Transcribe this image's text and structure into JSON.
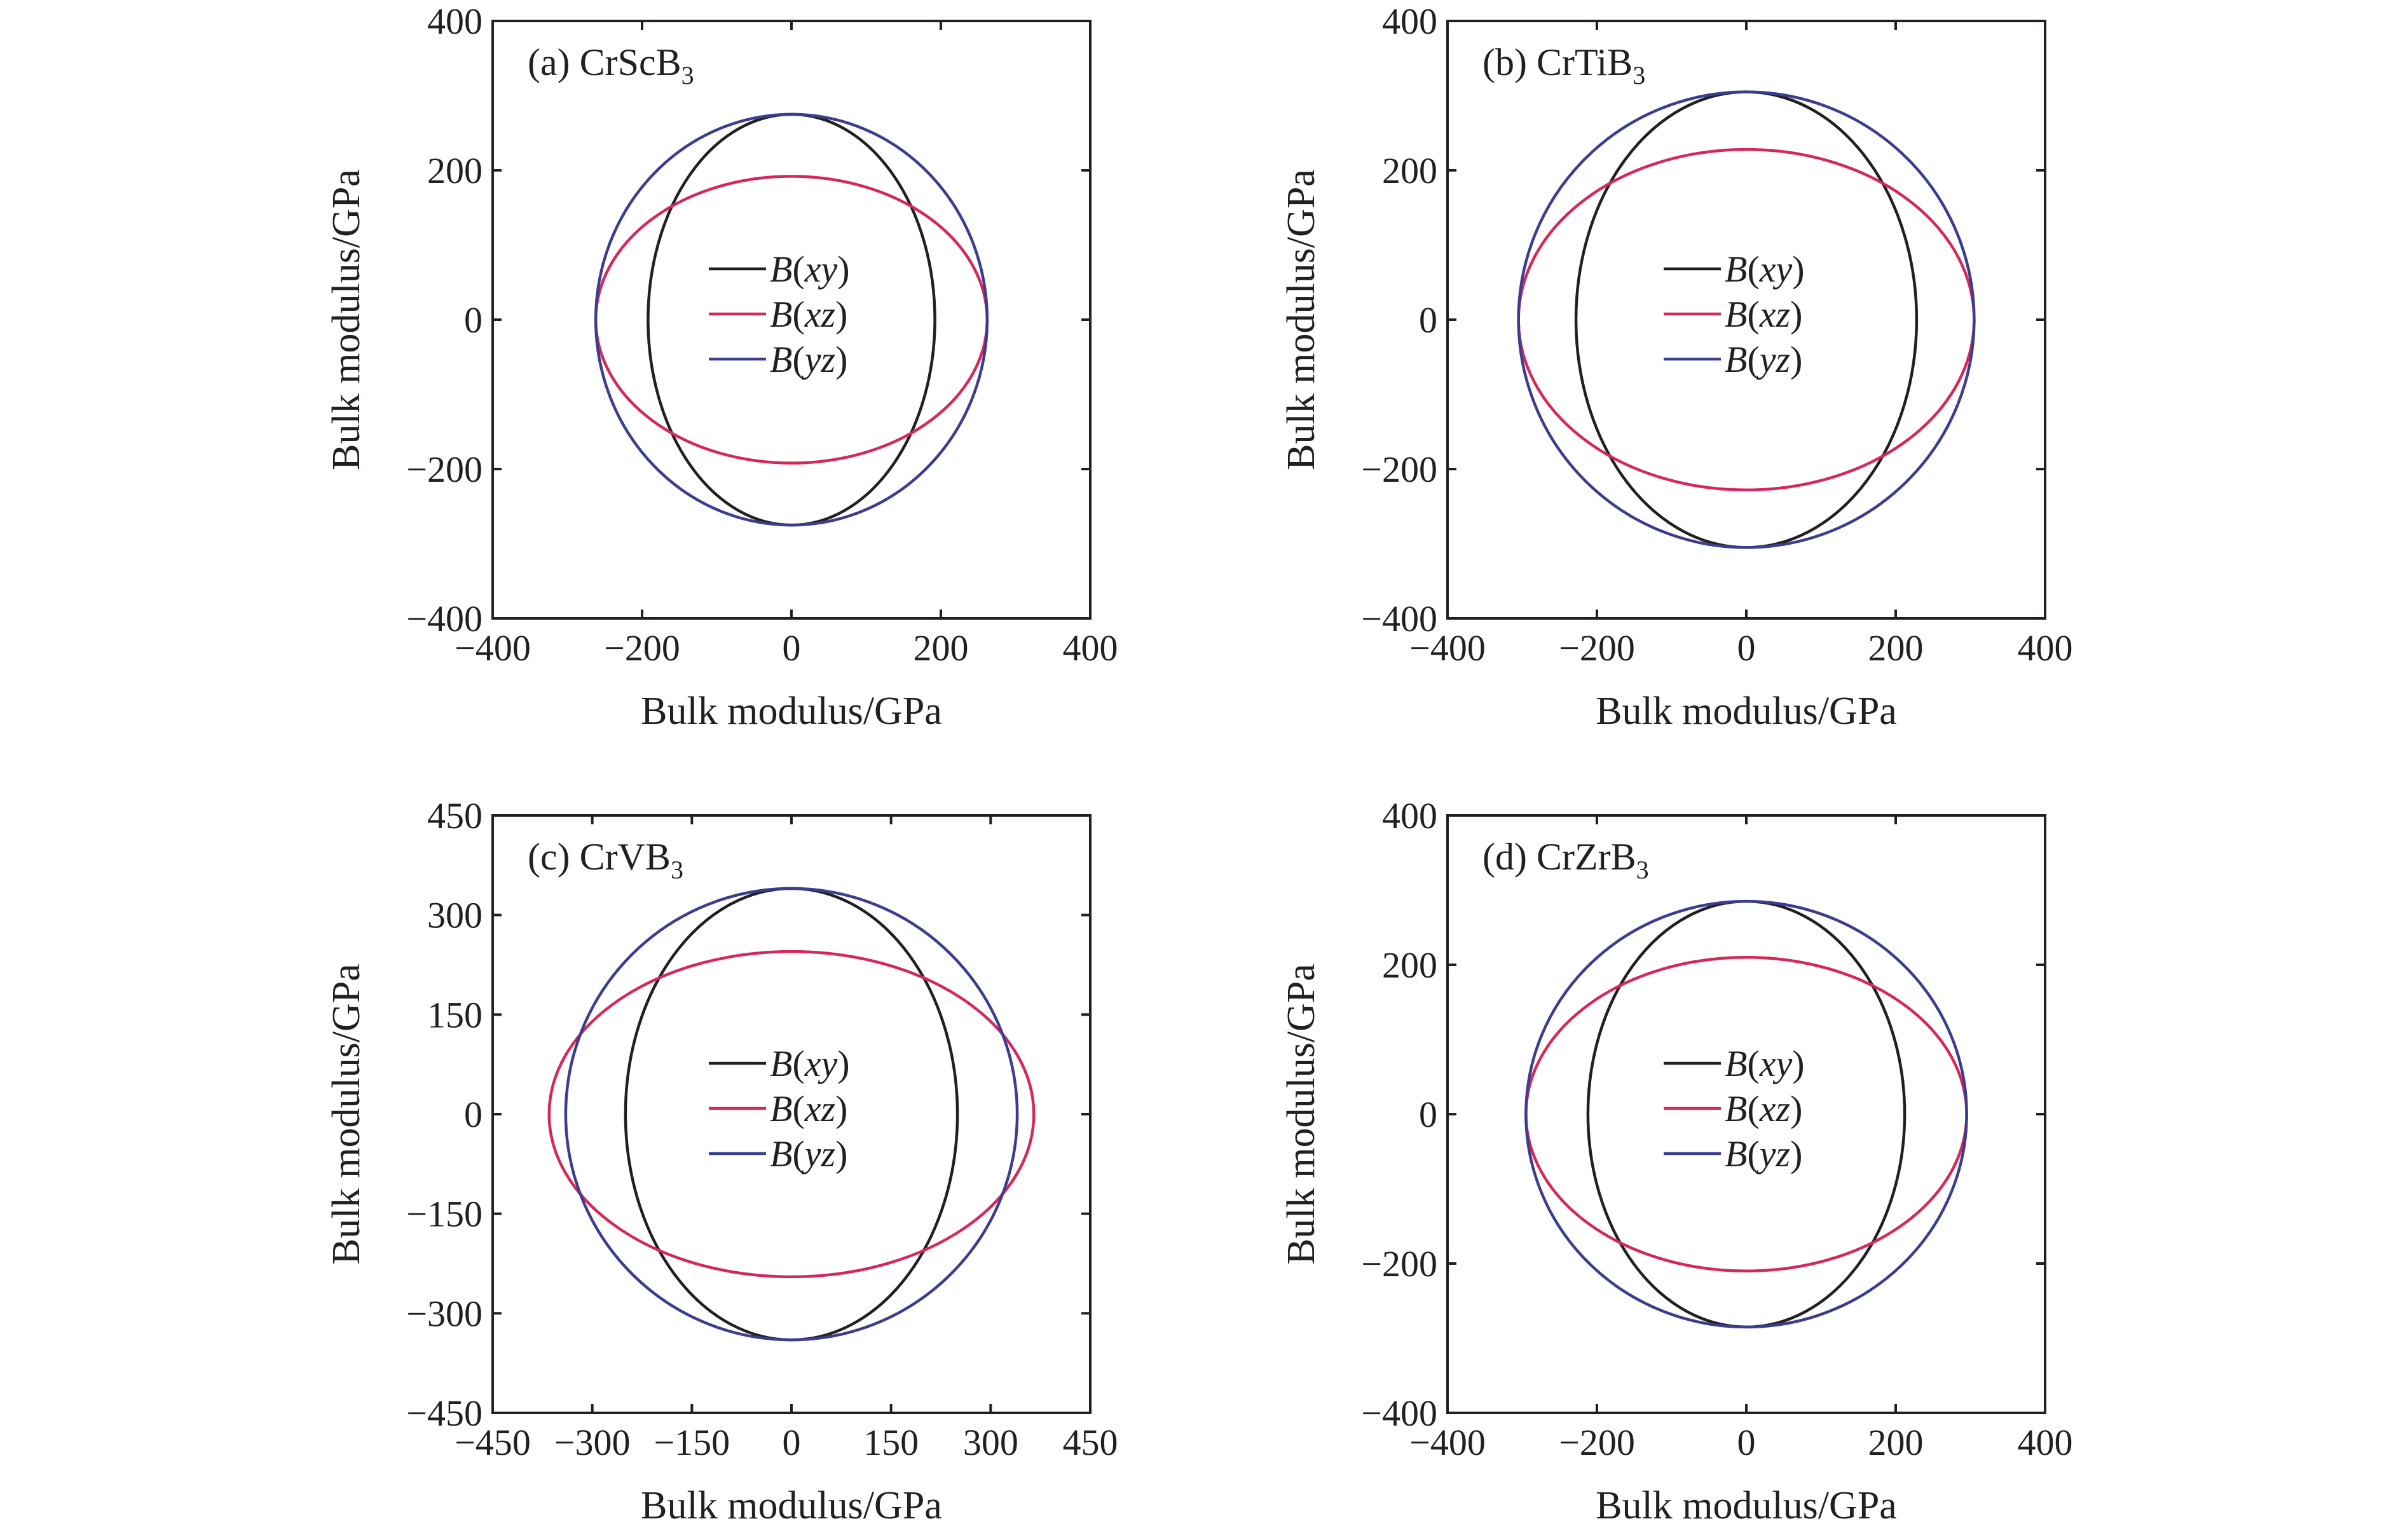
{
  "chart_data": [
    {
      "type": "polar-line",
      "panel": "(a)",
      "title": "CrScB",
      "title_subscript": "3",
      "xlabel": "Bulk modulus/GPa",
      "ylabel": "Bulk modulus/GPa",
      "xlim": [
        -400,
        400
      ],
      "ylim": [
        -400,
        400
      ],
      "xticks": [
        -400,
        -200,
        0,
        200,
        400
      ],
      "yticks": [
        -400,
        -200,
        0,
        200,
        400
      ],
      "xtick_labels": [
        "−400",
        "−200",
        "0",
        "200",
        "400"
      ],
      "ytick_labels": [
        "−400",
        "−200",
        "0",
        "200",
        "400"
      ],
      "grid": false,
      "legend_position": "center",
      "series": [
        {
          "name": "B(xy)",
          "name_main": "B",
          "name_args": "xy",
          "color": "#231f20",
          "a": 192,
          "b": 275
        },
        {
          "name": "B(xz)",
          "name_main": "B",
          "name_args": "xz",
          "color": "#d6275a",
          "a": 262,
          "b": 192
        },
        {
          "name": "B(yz)",
          "name_main": "B",
          "name_args": "yz",
          "color": "#3b3d8f",
          "a": 262,
          "b": 275
        }
      ]
    },
    {
      "type": "polar-line",
      "panel": "(b)",
      "title": "CrTiB",
      "title_subscript": "3",
      "xlabel": "Bulk modulus/GPa",
      "ylabel": "Bulk modulus/GPa",
      "xlim": [
        -400,
        400
      ],
      "ylim": [
        -400,
        400
      ],
      "xticks": [
        -400,
        -200,
        0,
        200,
        400
      ],
      "yticks": [
        -400,
        -200,
        0,
        200,
        400
      ],
      "xtick_labels": [
        "−400",
        "−200",
        "0",
        "200",
        "400"
      ],
      "ytick_labels": [
        "−400",
        "−200",
        "0",
        "200",
        "400"
      ],
      "grid": false,
      "legend_position": "center",
      "series": [
        {
          "name": "B(xy)",
          "name_main": "B",
          "name_args": "xy",
          "color": "#231f20",
          "a": 228,
          "b": 305
        },
        {
          "name": "B(xz)",
          "name_main": "B",
          "name_args": "xz",
          "color": "#d6275a",
          "a": 305,
          "b": 228
        },
        {
          "name": "B(yz)",
          "name_main": "B",
          "name_args": "yz",
          "color": "#3b3d8f",
          "a": 305,
          "b": 305
        }
      ]
    },
    {
      "type": "polar-line",
      "panel": "(c)",
      "title": "CrVB",
      "title_subscript": "3",
      "xlabel": "Bulk modulus/GPa",
      "ylabel": "Bulk modulus/GPa",
      "xlim": [
        -450,
        450
      ],
      "ylim": [
        -450,
        450
      ],
      "xticks": [
        -450,
        -300,
        -150,
        0,
        150,
        300,
        450
      ],
      "yticks": [
        -450,
        -300,
        -150,
        0,
        150,
        300,
        450
      ],
      "xtick_labels": [
        "−450",
        "−300",
        "−150",
        "0",
        "150",
        "300",
        "450"
      ],
      "ytick_labels": [
        "−450",
        "−300",
        "−150",
        "0",
        "150",
        "300",
        "450"
      ],
      "grid": false,
      "legend_position": "center",
      "series": [
        {
          "name": "B(xy)",
          "name_main": "B",
          "name_args": "xy",
          "color": "#231f20",
          "a": 250,
          "b": 340
        },
        {
          "name": "B(xz)",
          "name_main": "B",
          "name_args": "xz",
          "color": "#d6275a",
          "a": 365,
          "b": 245
        },
        {
          "name": "B(yz)",
          "name_main": "B",
          "name_args": "yz",
          "color": "#3b3d8f",
          "a": 340,
          "b": 340
        }
      ]
    },
    {
      "type": "polar-line",
      "panel": "(d)",
      "title": "CrZrB",
      "title_subscript": "3",
      "xlabel": "Bulk modulus/GPa",
      "ylabel": "Bulk modulus/GPa",
      "xlim": [
        -400,
        400
      ],
      "ylim": [
        -400,
        400
      ],
      "xticks": [
        -400,
        -200,
        0,
        200,
        400
      ],
      "yticks": [
        -400,
        -200,
        0,
        200,
        400
      ],
      "xtick_labels": [
        "−400",
        "−200",
        "0",
        "200",
        "400"
      ],
      "ytick_labels": [
        "−400",
        "−200",
        "0",
        "200",
        "400"
      ],
      "grid": false,
      "legend_position": "center",
      "series": [
        {
          "name": "B(xy)",
          "name_main": "B",
          "name_args": "xy",
          "color": "#231f20",
          "a": 212,
          "b": 285
        },
        {
          "name": "B(xz)",
          "name_main": "B",
          "name_args": "xz",
          "color": "#d6275a",
          "a": 295,
          "b": 210
        },
        {
          "name": "B(yz)",
          "name_main": "B",
          "name_args": "yz",
          "color": "#3b3d8f",
          "a": 295,
          "b": 285
        }
      ]
    }
  ]
}
